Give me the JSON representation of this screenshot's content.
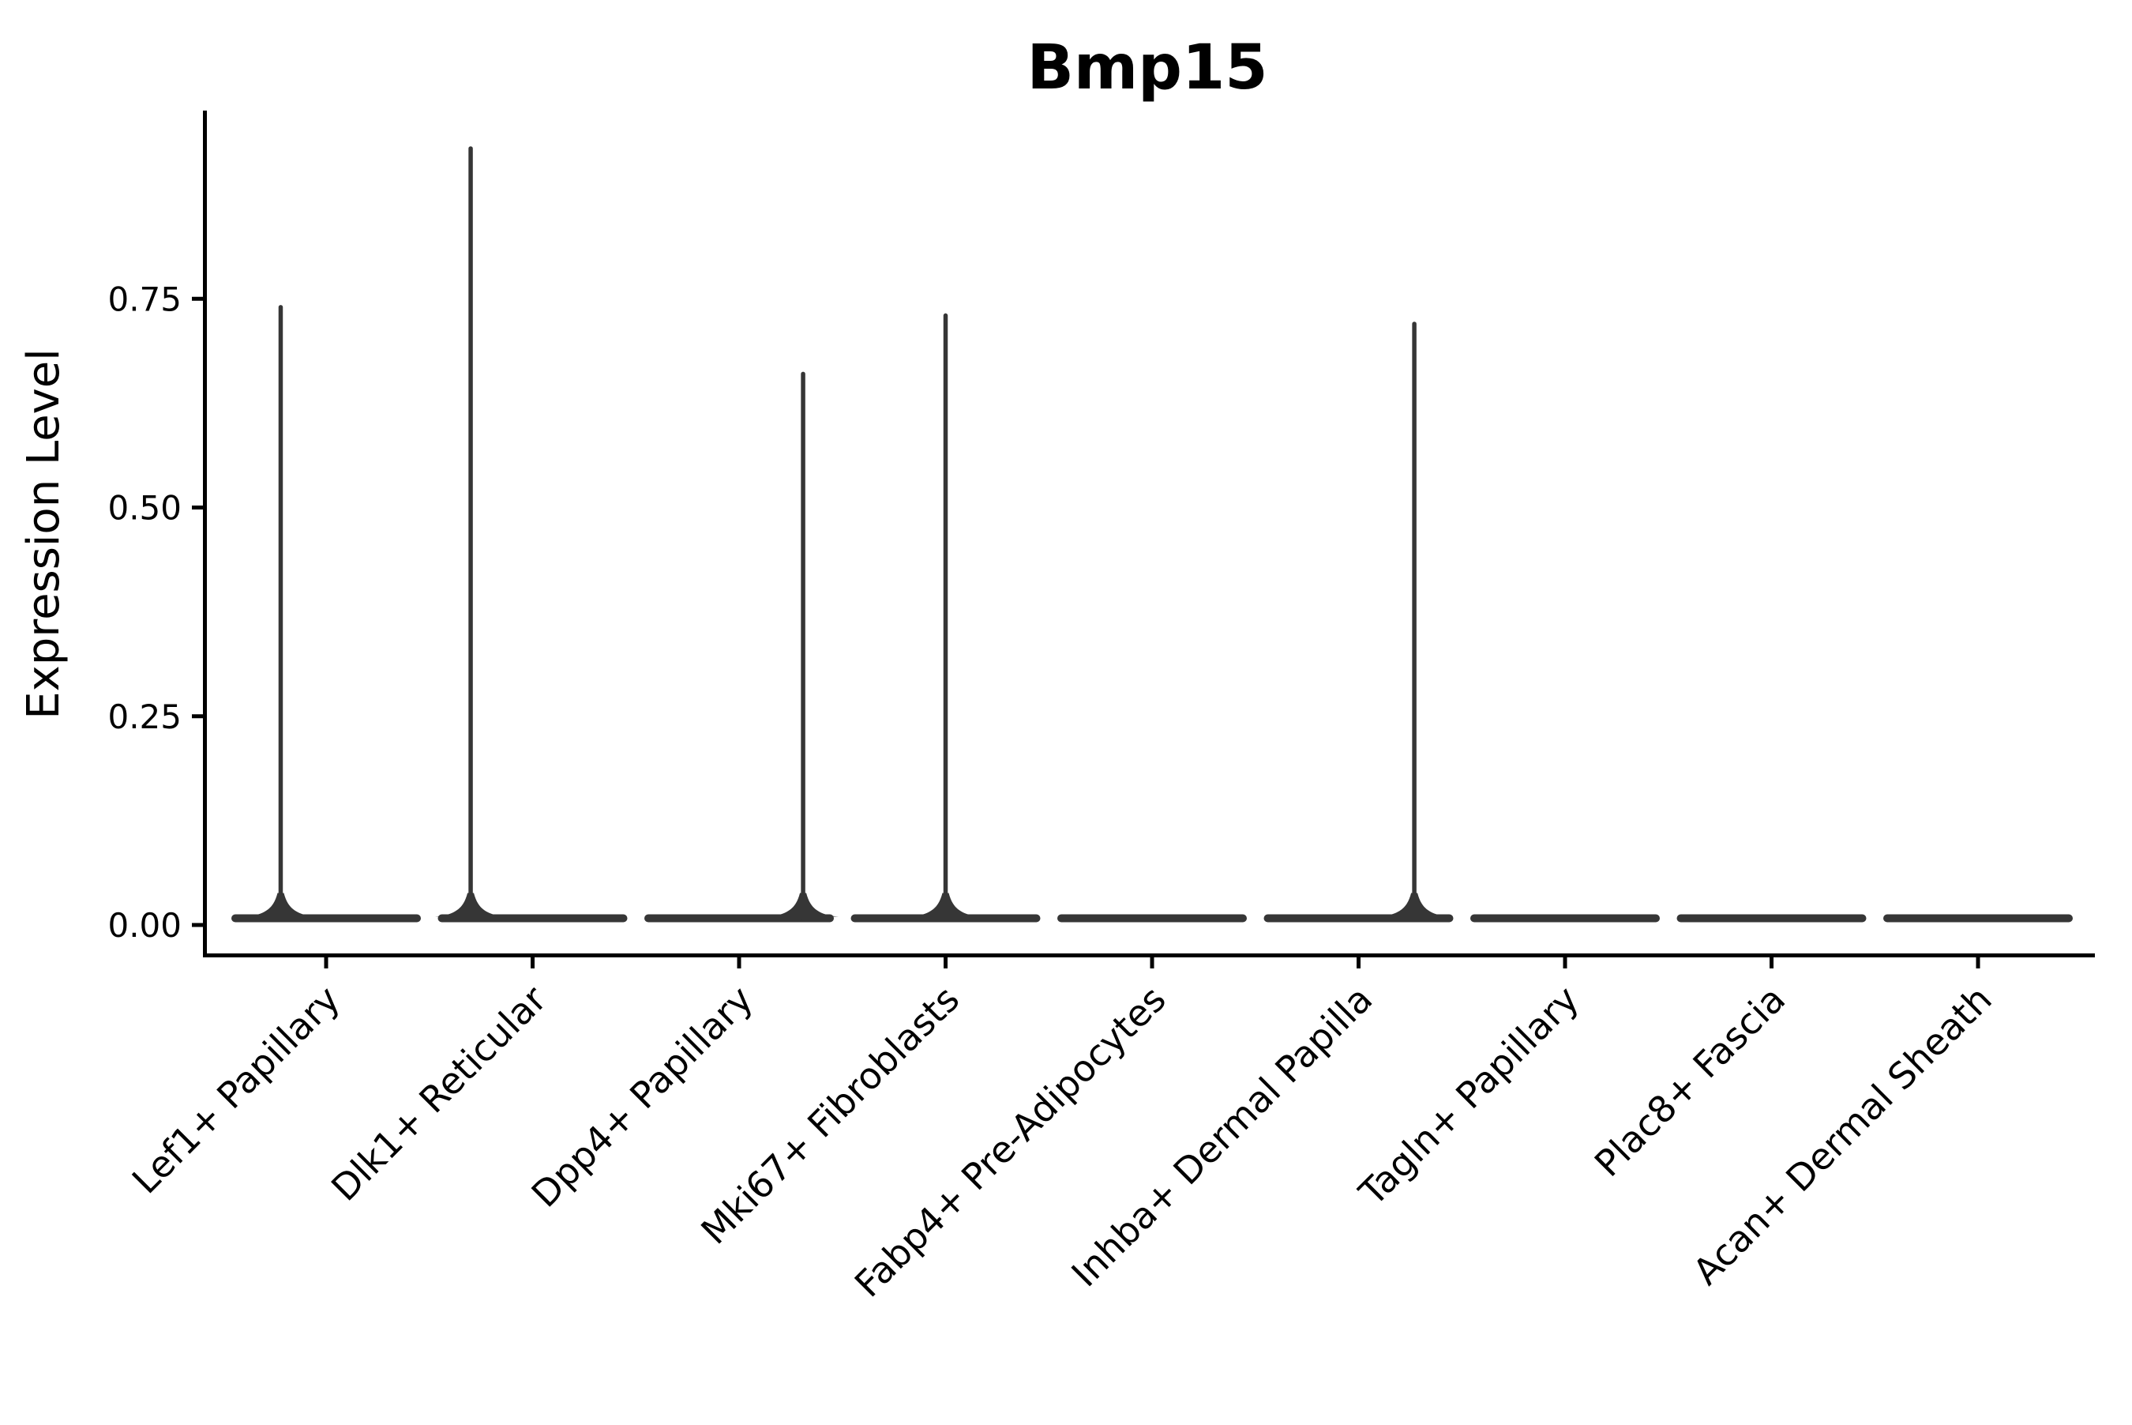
{
  "figure": {
    "title": "Bmp15",
    "background": "#ffffff"
  },
  "chart_data": {
    "type": "violin",
    "title": "Bmp15",
    "xlabel": "",
    "ylabel": "Expression Level",
    "ylim": [
      -0.04,
      0.98
    ],
    "grid": false,
    "legend": "none",
    "x_tick_rotation": 45,
    "axis_color": "#000000",
    "violin_color": "#363636",
    "yticks": [
      {
        "value": 0.0,
        "label": "0.00"
      },
      {
        "value": 0.25,
        "label": "0.25"
      },
      {
        "value": 0.5,
        "label": "0.50"
      },
      {
        "value": 0.75,
        "label": "0.75"
      }
    ],
    "categories": [
      "Lef1+ Papillary",
      "Dlk1+ Reticular",
      "Dpp4+ Papillary",
      "Mki67+ Fibroblasts",
      "Fabp4+ Pre-Adipocytes",
      "Inhba+ Dermal Papilla",
      "Tagln+ Papillary",
      "Plac8+ Fascia",
      "Acan+ Dermal Sheath"
    ],
    "violins": [
      {
        "category": "Lef1+ Papillary",
        "max_expression": 0.74,
        "spike_offset": -0.22
      },
      {
        "category": "Dlk1+ Reticular",
        "max_expression": 0.93,
        "spike_offset": -0.3
      },
      {
        "category": "Dpp4+ Papillary",
        "max_expression": 0.66,
        "spike_offset": 0.31
      },
      {
        "category": "Mki67+ Fibroblasts",
        "max_expression": 0.73,
        "spike_offset": 0.0
      },
      {
        "category": "Fabp4+ Pre-Adipocytes",
        "max_expression": 0.0,
        "spike_offset": 0
      },
      {
        "category": "Inhba+ Dermal Papilla",
        "max_expression": 0.72,
        "spike_offset": 0.27
      },
      {
        "category": "Tagln+ Papillary",
        "max_expression": 0.0,
        "spike_offset": 0
      },
      {
        "category": "Plac8+ Fascia",
        "max_expression": 0.0,
        "spike_offset": 0
      },
      {
        "category": "Acan+ Dermal Sheath",
        "max_expression": 0.0,
        "spike_offset": 0
      }
    ]
  }
}
